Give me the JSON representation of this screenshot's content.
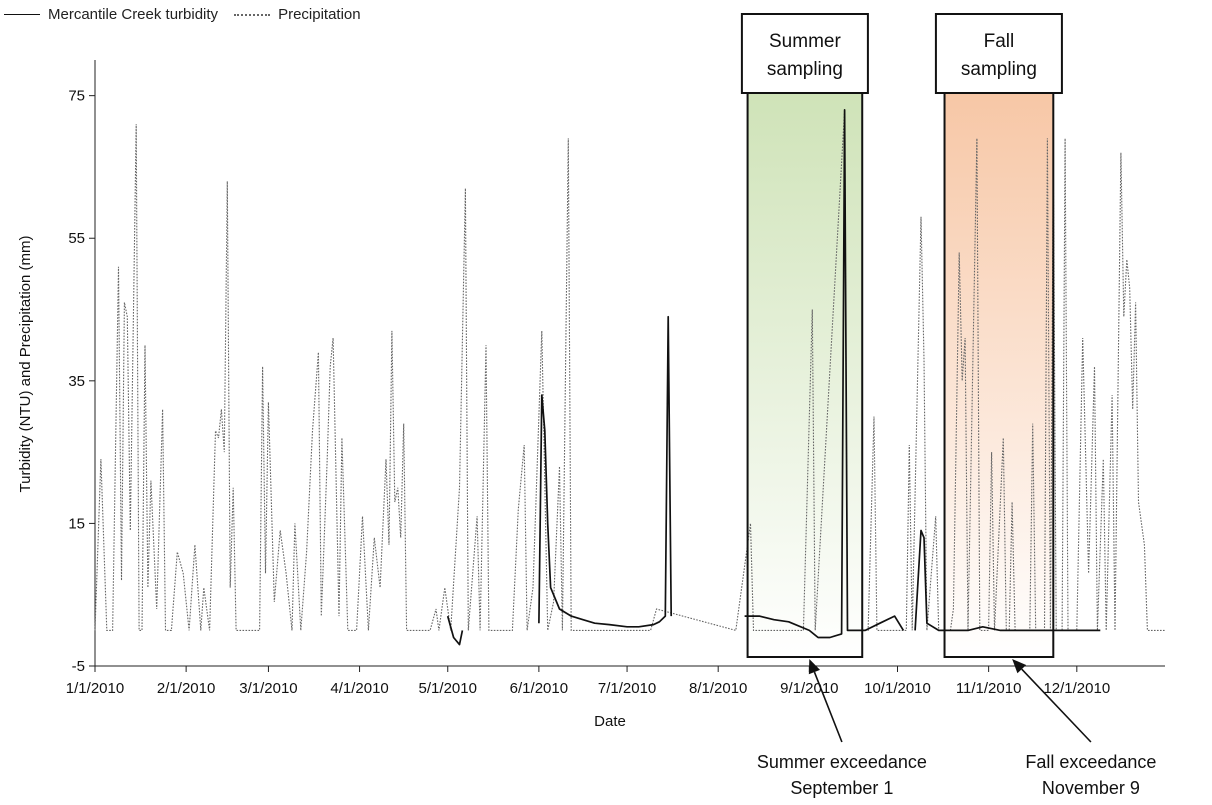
{
  "legend": {
    "turbidity_label": "Mercantile Creek turbidity",
    "precip_label": "Precipitation"
  },
  "chart_data": {
    "type": "line",
    "xlabel": "Date",
    "ylabel": "Turbidity (NTU) and Precipitation (mm)",
    "x_range": [
      "2010-01-01",
      "2010-12-31"
    ],
    "ylim": [
      -5,
      80
    ],
    "y_ticks": [
      -5,
      15,
      35,
      55,
      75
    ],
    "x_ticks": [
      "1/1/2010",
      "2/1/2010",
      "3/1/2010",
      "4/1/2010",
      "5/1/2010",
      "6/1/2010",
      "7/1/2010",
      "8/1/2010",
      "9/1/2010",
      "10/1/2010",
      "11/1/2010",
      "12/1/2010"
    ],
    "x_tick_dates": [
      "2010-01-01",
      "2010-02-01",
      "2010-03-01",
      "2010-04-01",
      "2010-05-01",
      "2010-06-01",
      "2010-07-01",
      "2010-08-01",
      "2010-09-01",
      "2010-10-01",
      "2010-11-01",
      "2010-12-01"
    ],
    "series": [
      {
        "name": "Precipitation",
        "style": "dotted",
        "color": "#666666",
        "points": [
          [
            "2010-01-01",
            0
          ],
          [
            "2010-01-03",
            24
          ],
          [
            "2010-01-05",
            0
          ],
          [
            "2010-01-07",
            0
          ],
          [
            "2010-01-09",
            51
          ],
          [
            "2010-01-10",
            7
          ],
          [
            "2010-01-11",
            46
          ],
          [
            "2010-01-12",
            44
          ],
          [
            "2010-01-13",
            14
          ],
          [
            "2010-01-15",
            71
          ],
          [
            "2010-01-16",
            0
          ],
          [
            "2010-01-17",
            0
          ],
          [
            "2010-01-18",
            40
          ],
          [
            "2010-01-19",
            6
          ],
          [
            "2010-01-20",
            21
          ],
          [
            "2010-01-22",
            3
          ],
          [
            "2010-01-24",
            31
          ],
          [
            "2010-01-25",
            0
          ],
          [
            "2010-01-27",
            0
          ],
          [
            "2010-01-29",
            11
          ],
          [
            "2010-01-31",
            8
          ],
          [
            "2010-02-02",
            0
          ],
          [
            "2010-02-04",
            12
          ],
          [
            "2010-02-06",
            0
          ],
          [
            "2010-02-07",
            6
          ],
          [
            "2010-02-09",
            0
          ],
          [
            "2010-02-11",
            28
          ],
          [
            "2010-02-12",
            27
          ],
          [
            "2010-02-13",
            31
          ],
          [
            "2010-02-14",
            25
          ],
          [
            "2010-02-15",
            63
          ],
          [
            "2010-02-16",
            6
          ],
          [
            "2010-02-17",
            20
          ],
          [
            "2010-02-18",
            0
          ],
          [
            "2010-02-26",
            0
          ],
          [
            "2010-02-27",
            37
          ],
          [
            "2010-02-28",
            8
          ],
          [
            "2010-03-01",
            32
          ],
          [
            "2010-03-03",
            4
          ],
          [
            "2010-03-05",
            14
          ],
          [
            "2010-03-07",
            8
          ],
          [
            "2010-03-09",
            0
          ],
          [
            "2010-03-10",
            15
          ],
          [
            "2010-03-12",
            0
          ],
          [
            "2010-03-14",
            11
          ],
          [
            "2010-03-16",
            28
          ],
          [
            "2010-03-18",
            39
          ],
          [
            "2010-03-19",
            2
          ],
          [
            "2010-03-21",
            24
          ],
          [
            "2010-03-22",
            37
          ],
          [
            "2010-03-23",
            41
          ],
          [
            "2010-03-25",
            2
          ],
          [
            "2010-03-26",
            27
          ],
          [
            "2010-03-28",
            0
          ],
          [
            "2010-03-31",
            0
          ],
          [
            "2010-04-02",
            16
          ],
          [
            "2010-04-04",
            0
          ],
          [
            "2010-04-06",
            13
          ],
          [
            "2010-04-08",
            6
          ],
          [
            "2010-04-10",
            24
          ],
          [
            "2010-04-11",
            12
          ],
          [
            "2010-04-12",
            42
          ],
          [
            "2010-04-13",
            18
          ],
          [
            "2010-04-14",
            20
          ],
          [
            "2010-04-15",
            13
          ],
          [
            "2010-04-16",
            29
          ],
          [
            "2010-04-17",
            0
          ],
          [
            "2010-04-25",
            0
          ],
          [
            "2010-04-27",
            3
          ],
          [
            "2010-04-28",
            0
          ],
          [
            "2010-04-30",
            6
          ],
          [
            "2010-05-02",
            0
          ],
          [
            "2010-05-05",
            20
          ],
          [
            "2010-05-07",
            62
          ],
          [
            "2010-05-08",
            0
          ],
          [
            "2010-05-11",
            16
          ],
          [
            "2010-05-12",
            0
          ],
          [
            "2010-05-14",
            40
          ],
          [
            "2010-05-15",
            0
          ],
          [
            "2010-05-23",
            0
          ],
          [
            "2010-05-25",
            17
          ],
          [
            "2010-05-27",
            26
          ],
          [
            "2010-05-28",
            0
          ],
          [
            "2010-05-30",
            6
          ],
          [
            "2010-06-02",
            42
          ],
          [
            "2010-06-04",
            0
          ],
          [
            "2010-06-06",
            4
          ],
          [
            "2010-06-08",
            23
          ],
          [
            "2010-06-09",
            0
          ],
          [
            "2010-06-11",
            69
          ],
          [
            "2010-06-12",
            0
          ],
          [
            "2010-07-09",
            0
          ],
          [
            "2010-07-11",
            3
          ],
          [
            "2010-08-07",
            0
          ],
          [
            "2010-08-12",
            15
          ],
          [
            "2010-08-13",
            0
          ],
          [
            "2010-08-30",
            0
          ],
          [
            "2010-09-02",
            45
          ],
          [
            "2010-09-03",
            0
          ],
          [
            "2010-09-13",
            73
          ],
          [
            "2010-09-14",
            0
          ],
          [
            "2010-09-21",
            0
          ],
          [
            "2010-09-23",
            30
          ],
          [
            "2010-09-24",
            0
          ],
          [
            "2010-10-04",
            0
          ],
          [
            "2010-10-05",
            26
          ],
          [
            "2010-10-06",
            0
          ],
          [
            "2010-10-09",
            58
          ],
          [
            "2010-10-10",
            38
          ],
          [
            "2010-10-11",
            0
          ],
          [
            "2010-10-14",
            16
          ],
          [
            "2010-10-15",
            0
          ],
          [
            "2010-10-19",
            0
          ],
          [
            "2010-10-20",
            3
          ],
          [
            "2010-10-22",
            53
          ],
          [
            "2010-10-23",
            35
          ],
          [
            "2010-10-24",
            41
          ],
          [
            "2010-10-25",
            0
          ],
          [
            "2010-10-28",
            69
          ],
          [
            "2010-10-29",
            0
          ],
          [
            "2010-11-01",
            0
          ],
          [
            "2010-11-02",
            25
          ],
          [
            "2010-11-03",
            0
          ],
          [
            "2010-11-06",
            27
          ],
          [
            "2010-11-07",
            0
          ],
          [
            "2010-11-08",
            0
          ],
          [
            "2010-11-09",
            18
          ],
          [
            "2010-11-10",
            0
          ],
          [
            "2010-11-15",
            0
          ],
          [
            "2010-11-16",
            29
          ],
          [
            "2010-11-17",
            0
          ],
          [
            "2010-11-20",
            0
          ],
          [
            "2010-11-21",
            69
          ],
          [
            "2010-11-22",
            0
          ],
          [
            "2010-11-23",
            66
          ],
          [
            "2010-11-24",
            0
          ],
          [
            "2010-11-26",
            0
          ],
          [
            "2010-11-27",
            69
          ],
          [
            "2010-11-28",
            0
          ],
          [
            "2010-12-01",
            0
          ],
          [
            "2010-12-03",
            41
          ],
          [
            "2010-12-05",
            8
          ],
          [
            "2010-12-07",
            37
          ],
          [
            "2010-12-08",
            0
          ],
          [
            "2010-12-10",
            24
          ],
          [
            "2010-12-11",
            0
          ],
          [
            "2010-12-13",
            33
          ],
          [
            "2010-12-14",
            0
          ],
          [
            "2010-12-16",
            67
          ],
          [
            "2010-12-17",
            44
          ],
          [
            "2010-12-18",
            52
          ],
          [
            "2010-12-19",
            48
          ],
          [
            "2010-12-20",
            31
          ],
          [
            "2010-12-21",
            46
          ],
          [
            "2010-12-22",
            18
          ],
          [
            "2010-12-24",
            12
          ],
          [
            "2010-12-25",
            0
          ],
          [
            "2010-12-31",
            0
          ]
        ]
      },
      {
        "name": "Mercantile Creek turbidity",
        "style": "solid",
        "color": "#111111",
        "segments": [
          [
            [
              "2010-05-01",
              2
            ],
            [
              "2010-05-03",
              -1
            ],
            [
              "2010-05-05",
              -2
            ],
            [
              "2010-05-06",
              0
            ]
          ],
          [
            [
              "2010-06-01",
              1
            ],
            [
              "2010-06-02",
              33
            ],
            [
              "2010-06-03",
              28
            ],
            [
              "2010-06-04",
              15
            ],
            [
              "2010-06-05",
              6
            ],
            [
              "2010-06-08",
              3
            ],
            [
              "2010-06-12",
              2
            ],
            [
              "2010-06-16",
              1.5
            ],
            [
              "2010-06-20",
              1
            ],
            [
              "2010-06-25",
              0.8
            ],
            [
              "2010-07-01",
              0.5
            ],
            [
              "2010-07-05",
              0.5
            ],
            [
              "2010-07-10",
              0.8
            ],
            [
              "2010-07-12",
              1.2
            ],
            [
              "2010-07-14",
              2
            ],
            [
              "2010-07-15",
              44
            ],
            [
              "2010-07-16",
              2
            ]
          ],
          [
            [
              "2010-08-10",
              2
            ],
            [
              "2010-08-15",
              2
            ],
            [
              "2010-08-20",
              1.5
            ],
            [
              "2010-08-25",
              1.2
            ],
            [
              "2010-09-01",
              0
            ],
            [
              "2010-09-04",
              -1
            ],
            [
              "2010-09-08",
              -1
            ],
            [
              "2010-09-12",
              -0.5
            ],
            [
              "2010-09-13",
              73
            ],
            [
              "2010-09-14",
              0
            ],
            [
              "2010-09-20",
              0
            ],
            [
              "2010-09-25",
              1
            ],
            [
              "2010-09-30",
              2
            ],
            [
              "2010-10-03",
              0
            ]
          ],
          [
            [
              "2010-10-07",
              0
            ],
            [
              "2010-10-09",
              14
            ],
            [
              "2010-10-10",
              13
            ],
            [
              "2010-10-11",
              1
            ],
            [
              "2010-10-15",
              0
            ],
            [
              "2010-10-20",
              0
            ],
            [
              "2010-10-25",
              0
            ],
            [
              "2010-10-30",
              0.5
            ],
            [
              "2010-11-05",
              0
            ],
            [
              "2010-11-10",
              0
            ],
            [
              "2010-11-15",
              0
            ],
            [
              "2010-11-20",
              0
            ],
            [
              "2010-11-25",
              0
            ],
            [
              "2010-11-30",
              0
            ],
            [
              "2010-12-05",
              0
            ],
            [
              "2010-12-09",
              0
            ]
          ]
        ]
      }
    ],
    "annotations": {
      "summer": {
        "label_lines": [
          "Summer",
          "sampling"
        ],
        "start": "2010-08-11",
        "end": "2010-09-19",
        "fill_color": "#cfe3b8",
        "note_lines": [
          "Summer exceedance",
          "September 1"
        ],
        "note_date": "2010-09-01"
      },
      "fall": {
        "label_lines": [
          "Fall",
          "sampling"
        ],
        "start": "2010-10-17",
        "end": "2010-11-23",
        "fill_color": "#f7c7a6",
        "note_lines": [
          "Fall exceedance",
          "November 9"
        ],
        "note_date": "2010-11-09"
      }
    }
  }
}
